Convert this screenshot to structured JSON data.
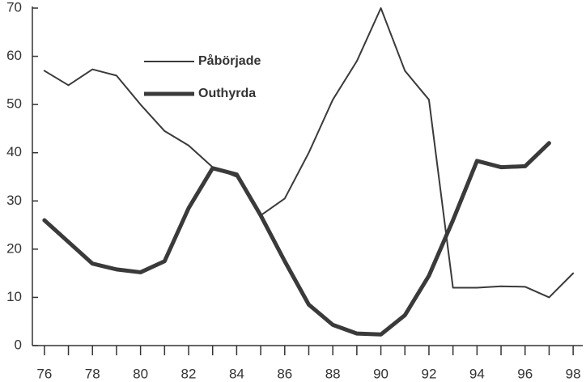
{
  "chart_data": {
    "type": "line",
    "x": [
      76,
      77,
      78,
      79,
      80,
      81,
      82,
      83,
      84,
      85,
      86,
      87,
      88,
      89,
      90,
      91,
      92,
      93,
      94,
      95,
      96,
      97,
      98
    ],
    "series": [
      {
        "name": "Påbörjade",
        "color": "#3a3a3a",
        "line_width": 2,
        "values": [
          57,
          54,
          57.3,
          56,
          50,
          44.5,
          41.5,
          37,
          35,
          27,
          30.5,
          40,
          51,
          59,
          70,
          57,
          51,
          12,
          12,
          12.3,
          12.2,
          10,
          15
        ]
      },
      {
        "name": "Outhyrda",
        "color": "#3a3a3a",
        "line_width": 5,
        "values": [
          26,
          21.5,
          17,
          15.8,
          15.2,
          17.5,
          28.5,
          36.8,
          35.5,
          27,
          17.5,
          8.5,
          4.3,
          2.5,
          2.3,
          6.3,
          14.5,
          26,
          38.3,
          37,
          37.2,
          42,
          null
        ]
      }
    ],
    "xlim": [
      75.5,
      98.4
    ],
    "ylim": [
      0,
      70
    ],
    "xticks": [
      76,
      78,
      80,
      82,
      84,
      86,
      88,
      90,
      92,
      94,
      96,
      98
    ],
    "xminorticks": [
      77,
      79,
      81,
      83,
      85,
      87,
      89,
      91,
      93,
      95,
      97
    ],
    "yticks": [
      0,
      10,
      20,
      30,
      40,
      50,
      60,
      70
    ],
    "grid": false
  }
}
